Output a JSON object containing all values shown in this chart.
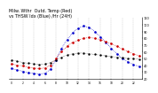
{
  "hours": [
    0,
    1,
    2,
    3,
    4,
    5,
    6,
    7,
    8,
    9,
    10,
    11,
    12,
    13,
    14,
    15,
    16,
    17,
    18,
    19,
    20,
    21,
    22,
    23
  ],
  "temp_red": [
    42,
    40,
    39,
    37,
    36,
    35,
    36,
    40,
    50,
    60,
    68,
    74,
    77,
    80,
    81,
    80,
    78,
    75,
    72,
    68,
    64,
    60,
    57,
    54
  ],
  "thsw_blue": [
    35,
    33,
    31,
    29,
    28,
    27,
    28,
    34,
    48,
    65,
    78,
    88,
    95,
    98,
    96,
    90,
    82,
    74,
    65,
    57,
    50,
    45,
    41,
    38
  ],
  "black_series": [
    48,
    46,
    44,
    43,
    42,
    41,
    42,
    44,
    48,
    52,
    55,
    57,
    58,
    58,
    57,
    56,
    55,
    54,
    53,
    52,
    51,
    50,
    50,
    49
  ],
  "ylim": [
    20,
    110
  ],
  "yticks": [
    20,
    30,
    40,
    50,
    60,
    70,
    80,
    90,
    100,
    110
  ],
  "xlim": [
    -0.5,
    23.5
  ],
  "bg_color": "#ffffff",
  "plot_bg": "#ffffff",
  "red_color": "#cc0000",
  "blue_color": "#0000cc",
  "black_color": "#000000",
  "grid_color": "#888888",
  "title_fontsize": 3.5,
  "tick_fontsize": 2.5
}
